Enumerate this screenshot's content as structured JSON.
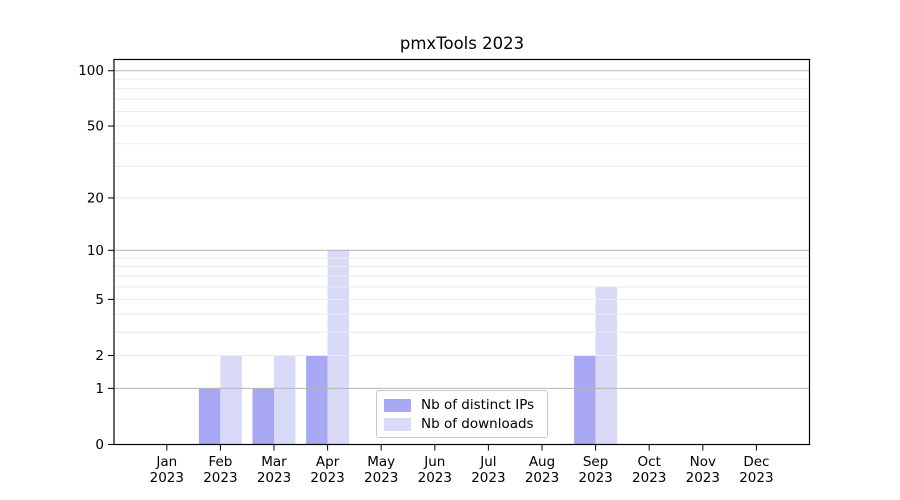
{
  "chart_data": {
    "type": "bar",
    "title": "pmxTools 2023",
    "categories": [
      "Jan",
      "Feb",
      "Mar",
      "Apr",
      "May",
      "Jun",
      "Jul",
      "Aug",
      "Sep",
      "Oct",
      "Nov",
      "Dec"
    ],
    "category_year": "2023",
    "series": [
      {
        "name": "Nb of distinct IPs",
        "color": "#a7a7f4",
        "values": [
          0,
          1,
          1,
          2,
          0,
          0,
          0,
          0,
          2,
          0,
          0,
          0
        ]
      },
      {
        "name": "Nb of downloads",
        "color": "#d9d9f8",
        "values": [
          0,
          2,
          2,
          10,
          0,
          0,
          0,
          0,
          6,
          0,
          0,
          0
        ]
      }
    ],
    "yscale": "log1p",
    "ylim": [
      0,
      115
    ],
    "ytick_labels": [
      0,
      1,
      2,
      5,
      10,
      20,
      50,
      100
    ],
    "grid": {
      "major": [
        1,
        10,
        100
      ],
      "minor": [
        2,
        3,
        4,
        5,
        6,
        7,
        8,
        9,
        20,
        30,
        40,
        50,
        60,
        70,
        80,
        90
      ],
      "major_color": "#b5b5b5",
      "minor_color": "#ebebeb"
    },
    "legend_position": "lower center",
    "axis_color": "#000000",
    "background": "#ffffff"
  }
}
